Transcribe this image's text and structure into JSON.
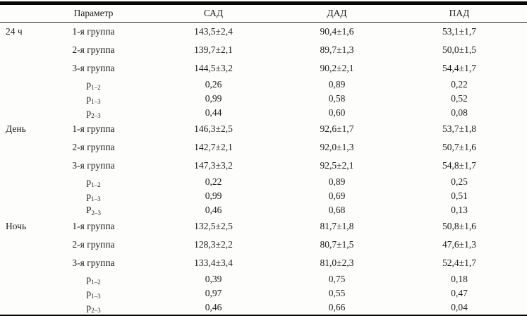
{
  "page": {
    "background": "#fdfdfc",
    "text_color": "#1c1c1c",
    "rule_color": "#060606"
  },
  "table": {
    "columns": [
      "",
      "Параметр",
      "САД",
      "ДАД",
      "ПАД"
    ],
    "groups": [
      {
        "period": "24 ч",
        "rows": [
          {
            "kind": "group",
            "label": "1-я группа",
            "values": [
              "143,5±2,4",
              "90,4±1,6",
              "53,1±1,7"
            ]
          },
          {
            "kind": "group",
            "label": "2-я группа",
            "values": [
              "139,7±2,1",
              "89,7±1,3",
              "50,0±1,5"
            ]
          },
          {
            "kind": "group",
            "label": "3-я группа",
            "values": [
              "144,5±3,2",
              "90,2±2,1",
              "54,4±1,7"
            ]
          },
          {
            "kind": "p",
            "p_base": "p",
            "p_sub": "1–2",
            "values": [
              "0,26",
              "0,89",
              "0,22"
            ]
          },
          {
            "kind": "p",
            "p_base": "p",
            "p_sub": "1–3",
            "values": [
              "0,99",
              "0,58",
              "0,52"
            ]
          },
          {
            "kind": "p",
            "p_base": "p",
            "p_sub": "2–3",
            "values": [
              "0,44",
              "0,60",
              "0,08"
            ]
          }
        ]
      },
      {
        "period": "День",
        "rows": [
          {
            "kind": "group",
            "label": "1-я группа",
            "values": [
              "146,3±2,5",
              "92,6±1,7",
              "53,7±1,8"
            ]
          },
          {
            "kind": "group",
            "label": "2-я группа",
            "values": [
              "142,7±2,1",
              "92,0±1,3",
              "50,7±1,6"
            ]
          },
          {
            "kind": "group",
            "label": "3-я группа",
            "values": [
              "147,3±3,2",
              "92,5±2,1",
              "54,8±1,7"
            ]
          },
          {
            "kind": "p",
            "p_base": "p",
            "p_sub": "1–2",
            "values": [
              "0,22",
              "0,89",
              "0,25"
            ]
          },
          {
            "kind": "p",
            "p_base": "p",
            "p_sub": "1–3",
            "values": [
              "0,99",
              "0,69",
              "0,51"
            ]
          },
          {
            "kind": "p",
            "p_base": "P",
            "p_sub": "2–3",
            "values": [
              "0,46",
              "0,68",
              "0,13"
            ]
          }
        ]
      },
      {
        "period": "Ночь",
        "rows": [
          {
            "kind": "group",
            "label": "1-я группа",
            "values": [
              "132,5±2,5",
              "81,7±1,8",
              "50,8±1,6"
            ]
          },
          {
            "kind": "group",
            "label": "2-я группа",
            "values": [
              "128,3±2,2",
              "80,7±1,5",
              "47,6±1,3"
            ]
          },
          {
            "kind": "group",
            "label": "3-я группа",
            "values": [
              "133,4±3,4",
              "81,0±2,3",
              "52,4±1,7"
            ]
          },
          {
            "kind": "p",
            "p_base": "p",
            "p_sub": "1–2",
            "values": [
              "0,39",
              "0,75",
              "0,18"
            ]
          },
          {
            "kind": "p",
            "p_base": "p",
            "p_sub": "1–3",
            "values": [
              "0,97",
              "0,55",
              "0,47"
            ]
          },
          {
            "kind": "p",
            "p_base": "p",
            "p_sub": "2–3",
            "values": [
              "0,46",
              "0,66",
              "0,04"
            ]
          }
        ]
      }
    ]
  }
}
